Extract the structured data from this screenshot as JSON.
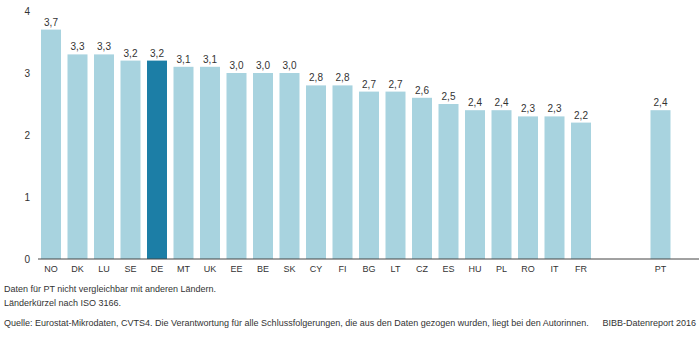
{
  "chart_data": {
    "type": "bar",
    "categories": [
      "NO",
      "DK",
      "LU",
      "SE",
      "DE",
      "MT",
      "UK",
      "EE",
      "BE",
      "SK",
      "CY",
      "FI",
      "BG",
      "LT",
      "CZ",
      "ES",
      "HU",
      "PL",
      "RO",
      "IT",
      "FR",
      null,
      null,
      "PT"
    ],
    "values": [
      3.7,
      3.3,
      3.3,
      3.2,
      3.2,
      3.1,
      3.1,
      3.0,
      3.0,
      3.0,
      2.8,
      2.8,
      2.7,
      2.7,
      2.6,
      2.5,
      2.4,
      2.4,
      2.3,
      2.3,
      2.2,
      null,
      null,
      2.4
    ],
    "value_labels": [
      "3,7",
      "3,3",
      "3,3",
      "3,2",
      "3,2",
      "3,1",
      "3,1",
      "3,0",
      "3,0",
      "3,0",
      "2,8",
      "2,8",
      "2,7",
      "2,7",
      "2,6",
      "2,5",
      "2,4",
      "2,4",
      "2,3",
      "2,3",
      "2,2",
      null,
      null,
      "2,4"
    ],
    "colors": [
      "#a8d3df",
      "#a8d3df",
      "#a8d3df",
      "#a8d3df",
      "#1c7ea6",
      "#a8d3df",
      "#a8d3df",
      "#a8d3df",
      "#a8d3df",
      "#a8d3df",
      "#a8d3df",
      "#a8d3df",
      "#a8d3df",
      "#a8d3df",
      "#a8d3df",
      "#a8d3df",
      "#a8d3df",
      "#a8d3df",
      "#a8d3df",
      "#a8d3df",
      "#a8d3df",
      null,
      null,
      "#a8d3df"
    ],
    "ylim": [
      0,
      4
    ],
    "yticks": [
      0,
      1,
      2,
      3,
      4
    ],
    "grid": false,
    "data_labels": true,
    "annotations": [
      "Daten für PT nicht vergleichbar mit anderen Ländern.",
      "Länderkürzel nach ISO 3166.",
      "Quelle: Eurostat-Mikrodaten, CVTS4. Die Verantwortung für alle Schlussfolgerungen, die aus den Daten gezogen wurden, liegt bei den Autorinnen."
    ],
    "source": "BIBB-Datenreport 2016"
  }
}
